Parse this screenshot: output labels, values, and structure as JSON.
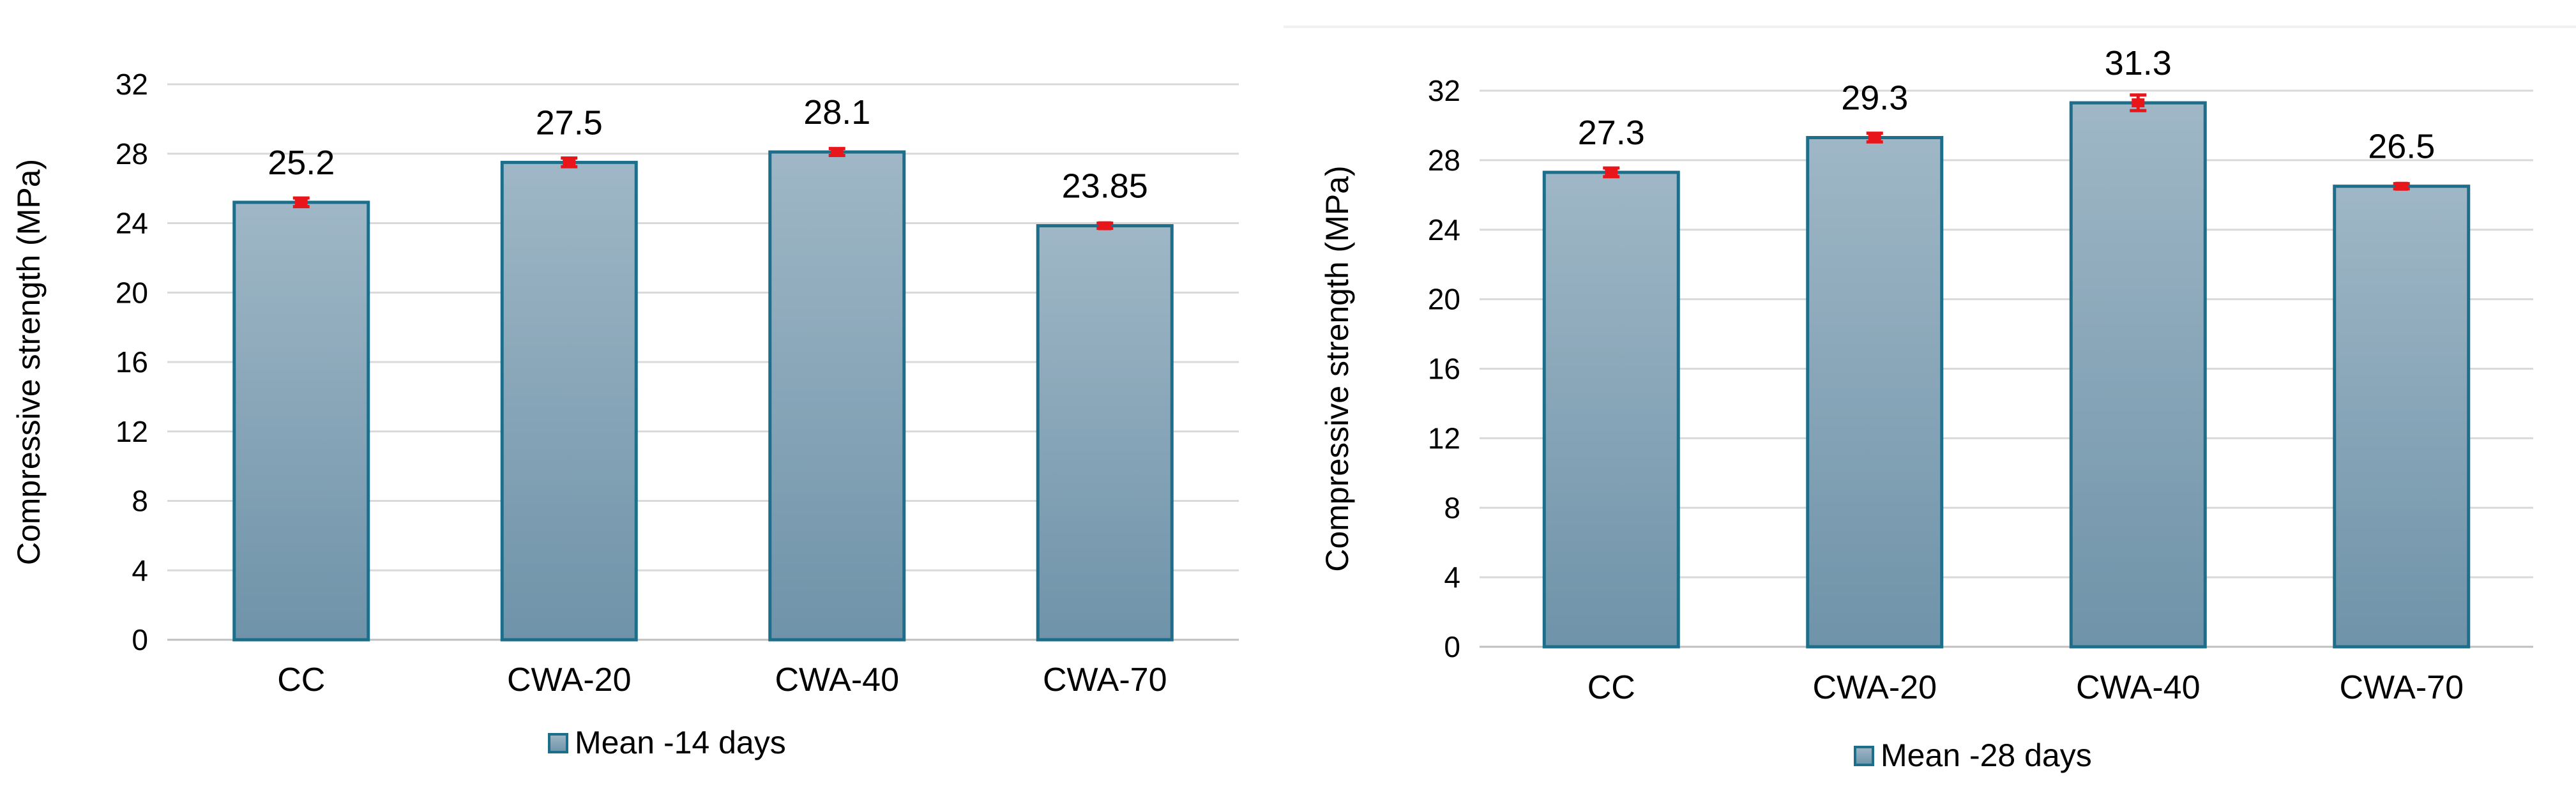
{
  "chart_data": [
    {
      "type": "bar",
      "categories": [
        "CC",
        "CWA-20",
        "CWA-40",
        "CWA-70"
      ],
      "values": [
        25.2,
        27.5,
        28.1,
        23.85
      ],
      "value_labels": [
        "25.2",
        "27.5",
        "28.1",
        "23.85"
      ],
      "error": [
        0.25,
        0.25,
        0.2,
        0.15
      ],
      "ylabel": "Compressive strength (MPa)",
      "xlabel": "",
      "ylim": [
        0,
        32
      ],
      "yticks": [
        0,
        4,
        8,
        12,
        16,
        20,
        24,
        28,
        32
      ],
      "legend": "Mean -14 days",
      "legend_position": "bottom",
      "grid": true,
      "colors": {
        "bar_top": "#9fb7c6",
        "bar_bottom": "#6f93a9",
        "bar_edge": "#1c6e8a",
        "error": "#e8161b",
        "grid": "#d9d9d9"
      }
    },
    {
      "type": "bar",
      "categories": [
        "CC",
        "CWA-20",
        "CWA-40",
        "CWA-70"
      ],
      "values": [
        27.3,
        29.3,
        31.3,
        26.5
      ],
      "value_labels": [
        "27.3",
        "29.3",
        "31.3",
        "26.5"
      ],
      "error": [
        0.25,
        0.25,
        0.45,
        0.15
      ],
      "ylabel": "Compressive strength (MPa)",
      "xlabel": "",
      "ylim": [
        0,
        32
      ],
      "yticks": [
        0,
        4,
        8,
        12,
        16,
        20,
        24,
        28,
        32
      ],
      "legend": "Mean -28 days",
      "legend_position": "bottom",
      "grid": true,
      "colors": {
        "bar_top": "#9fb7c6",
        "bar_bottom": "#6f93a9",
        "bar_edge": "#1c6e8a",
        "error": "#e8161b",
        "grid": "#d9d9d9"
      }
    }
  ]
}
